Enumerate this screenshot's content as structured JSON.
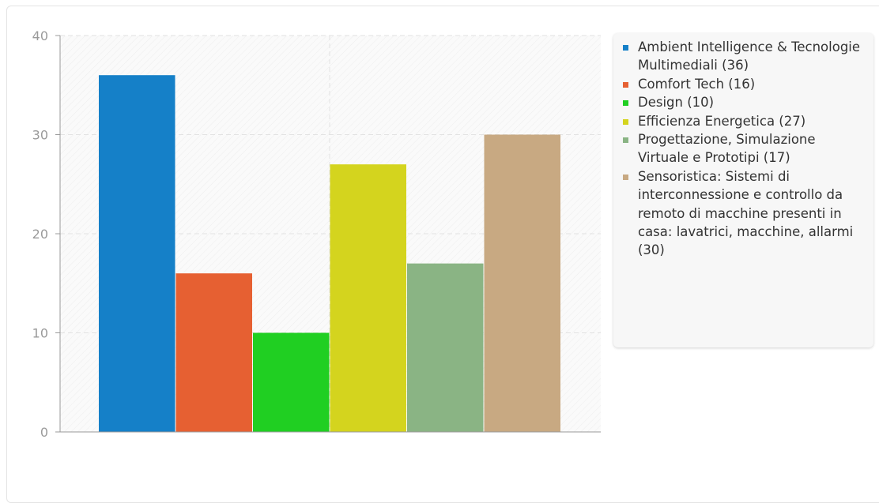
{
  "chart_data": {
    "type": "bar",
    "categories": [
      "Ambient Intelligence & Tecnologie Multimediali (36)",
      "Comfort Tech (16)",
      "Design (10)",
      "Efficienza Energetica (27)",
      "Progettazione, Simulazione Virtuale e Prototipi (17)",
      "Sensoristica: Sistemi di interconnessione e controllo da remoto di macchine presenti in casa: lavatrici, macchine, allarmi (30)"
    ],
    "values": [
      36,
      16,
      10,
      27,
      17,
      30
    ],
    "colors": [
      "#1580c8",
      "#e66032",
      "#20cf22",
      "#d4d41e",
      "#8ab484",
      "#c8a982"
    ],
    "ylim": [
      0,
      40
    ],
    "yticks": [
      "0",
      "10",
      "20",
      "30",
      "40"
    ],
    "title": "",
    "xlabel": "",
    "ylabel": "",
    "grid": true,
    "legend_position": "right"
  }
}
